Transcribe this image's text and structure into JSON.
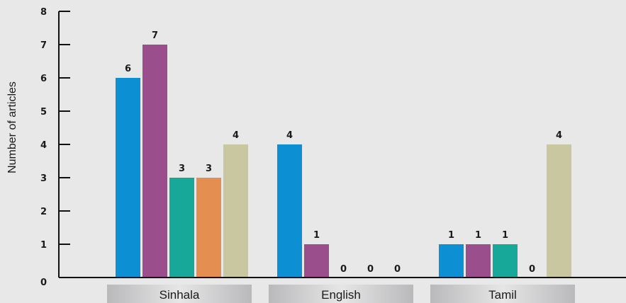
{
  "chart_data": {
    "type": "bar",
    "ylabel": "Number of articles",
    "ylim": [
      0,
      8
    ],
    "yticks": [
      "0",
      "1",
      "2",
      "3",
      "4",
      "5",
      "6",
      "7",
      "8"
    ],
    "categories": [
      "Sinhala",
      "English",
      "Tamil"
    ],
    "series": [
      {
        "values": [
          6,
          4,
          1
        ],
        "color": "#0c8fd3"
      },
      {
        "values": [
          7,
          1,
          1
        ],
        "color": "#9a4e8c"
      },
      {
        "values": [
          3,
          0,
          1
        ],
        "color": "#17a89a"
      },
      {
        "values": [
          3,
          0,
          0
        ],
        "color": "#e58e52"
      },
      {
        "values": [
          4,
          0,
          4
        ],
        "color": "#c9c79f"
      }
    ],
    "grid": false,
    "legend": "none"
  }
}
